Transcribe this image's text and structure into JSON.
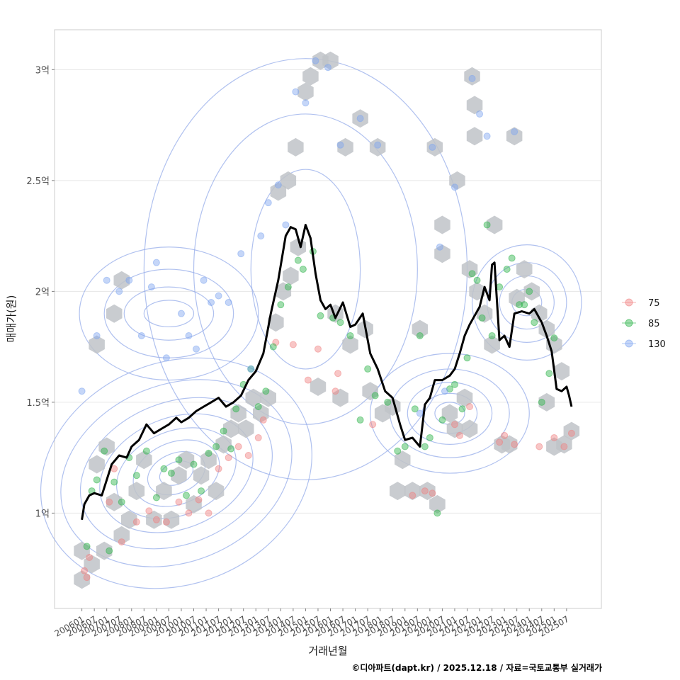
{
  "chart_data": {
    "type": "scatter",
    "title": "",
    "xlabel": "거래년월",
    "ylabel": "매매가(원)",
    "y_unit": "억",
    "ylim": [
      0.57,
      3.18
    ],
    "yticks": [
      1,
      1.5,
      2,
      2.5,
      3
    ],
    "ytick_labels": [
      "1억",
      "1.5억",
      "2억",
      "2.5억",
      "3억"
    ],
    "xlim": [
      2004.9,
      2026.9
    ],
    "xticks": [
      2006.0,
      2006.5,
      2007.0,
      2007.5,
      2008.0,
      2008.5,
      2009.0,
      2009.5,
      2010.0,
      2010.5,
      2011.0,
      2011.5,
      2012.0,
      2012.5,
      2013.0,
      2013.5,
      2014.0,
      2014.5,
      2015.0,
      2015.5,
      2016.0,
      2016.5,
      2017.0,
      2017.5,
      2018.0,
      2018.5,
      2019.0,
      2019.5,
      2020.0,
      2020.5,
      2021.0,
      2021.5,
      2022.0,
      2022.5,
      2023.0,
      2023.5,
      2024.0,
      2024.5,
      2025.0,
      2025.5
    ],
    "xtick_labels": [
      "200601",
      "200607",
      "200701",
      "200707",
      "200801",
      "200807",
      "200901",
      "200907",
      "201001",
      "201007",
      "201101",
      "201107",
      "201201",
      "201207",
      "201301",
      "201307",
      "201401",
      "201407",
      "201501",
      "201507",
      "201601",
      "201607",
      "201701",
      "201707",
      "201801",
      "201807",
      "201901",
      "201907",
      "202001",
      "202007",
      "202101",
      "202107",
      "202201",
      "202207",
      "202301",
      "202307",
      "202401",
      "202407",
      "202501",
      "202507"
    ],
    "grid": true,
    "legend": {
      "position": "right",
      "entries": [
        "75",
        "85",
        "130"
      ]
    },
    "series_colors": {
      "75": "#f08080",
      "85": "#2db34a",
      "130": "#7ea5f0"
    },
    "hex_color": "#bfc3c8",
    "contour_color": "#8ea6e8",
    "line_color": "#000000",
    "trend_line": {
      "name": "moving average",
      "x": [
        2006.0,
        2006.1,
        2006.3,
        2006.5,
        2006.8,
        2007.0,
        2007.2,
        2007.5,
        2007.8,
        2008.0,
        2008.3,
        2008.6,
        2008.9,
        2009.2,
        2009.5,
        2009.8,
        2010.0,
        2010.3,
        2010.6,
        2010.9,
        2011.2,
        2011.5,
        2011.8,
        2012.1,
        2012.4,
        2012.7,
        2013.0,
        2013.3,
        2013.6,
        2013.9,
        2014.2,
        2014.4,
        2014.6,
        2014.8,
        2015.0,
        2015.2,
        2015.4,
        2015.6,
        2015.8,
        2016.0,
        2016.2,
        2016.5,
        2016.8,
        2017.0,
        2017.3,
        2017.6,
        2017.9,
        2018.2,
        2018.5,
        2018.8,
        2019.0,
        2019.3,
        2019.6,
        2019.8,
        2020.0,
        2020.2,
        2020.5,
        2020.8,
        2021.0,
        2021.2,
        2021.4,
        2021.6,
        2021.8,
        2022.0,
        2022.2,
        2022.4,
        2022.5,
        2022.6,
        2022.8,
        2023.0,
        2023.2,
        2023.4,
        2023.7,
        2024.0,
        2024.2,
        2024.5,
        2024.7,
        2024.9,
        2025.1,
        2025.3,
        2025.5,
        2025.6,
        2025.7
      ],
      "y": [
        0.97,
        1.04,
        1.08,
        1.09,
        1.08,
        1.15,
        1.22,
        1.26,
        1.25,
        1.3,
        1.33,
        1.4,
        1.36,
        1.38,
        1.4,
        1.43,
        1.41,
        1.43,
        1.46,
        1.48,
        1.5,
        1.52,
        1.48,
        1.5,
        1.53,
        1.6,
        1.64,
        1.72,
        1.9,
        2.05,
        2.25,
        2.29,
        2.28,
        2.2,
        2.3,
        2.24,
        2.08,
        1.96,
        1.92,
        1.94,
        1.88,
        1.95,
        1.84,
        1.85,
        1.9,
        1.72,
        1.65,
        1.55,
        1.52,
        1.4,
        1.33,
        1.34,
        1.3,
        1.49,
        1.52,
        1.6,
        1.6,
        1.62,
        1.65,
        1.72,
        1.8,
        1.85,
        1.89,
        1.93,
        2.02,
        1.96,
        2.12,
        2.13,
        1.78,
        1.8,
        1.75,
        1.9,
        1.91,
        1.9,
        1.92,
        1.86,
        1.8,
        1.73,
        1.56,
        1.55,
        1.57,
        1.53,
        1.48
      ]
    },
    "series": [
      {
        "name": "75",
        "points": [
          [
            2006.1,
            0.74
          ],
          [
            2006.3,
            0.8
          ],
          [
            2006.2,
            0.71
          ],
          [
            2007.1,
            1.05
          ],
          [
            2007.3,
            1.2
          ],
          [
            2007.6,
            0.87
          ],
          [
            2008.2,
            0.96
          ],
          [
            2008.7,
            1.01
          ],
          [
            2009.0,
            0.97
          ],
          [
            2009.4,
            0.96
          ],
          [
            2009.9,
            1.05
          ],
          [
            2010.3,
            1.0
          ],
          [
            2010.7,
            1.06
          ],
          [
            2011.1,
            1.0
          ],
          [
            2011.5,
            1.2
          ],
          [
            2011.9,
            1.25
          ],
          [
            2012.3,
            1.3
          ],
          [
            2012.7,
            1.26
          ],
          [
            2013.1,
            1.34
          ],
          [
            2013.3,
            1.42
          ],
          [
            2013.8,
            1.77
          ],
          [
            2014.5,
            1.76
          ],
          [
            2015.1,
            1.6
          ],
          [
            2015.5,
            1.74
          ],
          [
            2016.3,
            1.63
          ],
          [
            2016.2,
            1.55
          ],
          [
            2017.7,
            1.4
          ],
          [
            2019.3,
            1.08
          ],
          [
            2019.8,
            1.1
          ],
          [
            2020.1,
            1.09
          ],
          [
            2021.0,
            1.4
          ],
          [
            2021.2,
            1.35
          ],
          [
            2021.6,
            1.48
          ],
          [
            2022.8,
            1.32
          ],
          [
            2023.0,
            1.35
          ],
          [
            2023.4,
            1.31
          ],
          [
            2024.4,
            1.3
          ],
          [
            2025.0,
            1.34
          ],
          [
            2025.4,
            1.3
          ],
          [
            2025.7,
            1.36
          ]
        ]
      },
      {
        "name": "85",
        "points": [
          [
            2006.2,
            0.85
          ],
          [
            2006.4,
            1.1
          ],
          [
            2006.6,
            1.15
          ],
          [
            2006.9,
            1.28
          ],
          [
            2007.1,
            0.83
          ],
          [
            2007.3,
            1.14
          ],
          [
            2007.6,
            1.05
          ],
          [
            2007.9,
            1.25
          ],
          [
            2008.2,
            1.17
          ],
          [
            2008.6,
            1.28
          ],
          [
            2009.0,
            1.07
          ],
          [
            2009.3,
            1.2
          ],
          [
            2009.6,
            1.18
          ],
          [
            2009.9,
            1.24
          ],
          [
            2010.2,
            1.08
          ],
          [
            2010.5,
            1.22
          ],
          [
            2010.8,
            1.1
          ],
          [
            2011.1,
            1.27
          ],
          [
            2011.4,
            1.3
          ],
          [
            2011.7,
            1.37
          ],
          [
            2012.0,
            1.29
          ],
          [
            2012.2,
            1.47
          ],
          [
            2012.5,
            1.58
          ],
          [
            2012.8,
            1.65
          ],
          [
            2013.1,
            1.48
          ],
          [
            2013.4,
            1.55
          ],
          [
            2013.7,
            1.75
          ],
          [
            2014.0,
            1.94
          ],
          [
            2014.3,
            2.02
          ],
          [
            2014.7,
            2.14
          ],
          [
            2014.9,
            2.1
          ],
          [
            2015.3,
            2.18
          ],
          [
            2015.6,
            1.89
          ],
          [
            2016.1,
            1.88
          ],
          [
            2016.4,
            1.86
          ],
          [
            2016.8,
            1.8
          ],
          [
            2017.2,
            1.42
          ],
          [
            2017.5,
            1.65
          ],
          [
            2017.8,
            1.53
          ],
          [
            2018.3,
            1.5
          ],
          [
            2018.7,
            1.28
          ],
          [
            2019.0,
            1.3
          ],
          [
            2019.4,
            1.47
          ],
          [
            2019.6,
            1.8
          ],
          [
            2019.8,
            1.3
          ],
          [
            2020.0,
            1.34
          ],
          [
            2020.3,
            1.0
          ],
          [
            2020.5,
            1.42
          ],
          [
            2020.8,
            1.56
          ],
          [
            2021.0,
            1.58
          ],
          [
            2021.3,
            1.47
          ],
          [
            2021.5,
            1.7
          ],
          [
            2021.7,
            2.08
          ],
          [
            2021.9,
            2.05
          ],
          [
            2022.1,
            1.88
          ],
          [
            2022.3,
            2.3
          ],
          [
            2022.5,
            1.8
          ],
          [
            2022.8,
            2.02
          ],
          [
            2023.1,
            2.1
          ],
          [
            2023.3,
            2.15
          ],
          [
            2023.6,
            1.94
          ],
          [
            2023.8,
            1.94
          ],
          [
            2024.0,
            2.0
          ],
          [
            2024.2,
            1.86
          ],
          [
            2024.5,
            1.5
          ],
          [
            2024.8,
            1.63
          ],
          [
            2025.0,
            1.79
          ]
        ]
      },
      {
        "name": "130",
        "points": [
          [
            2006.0,
            1.55
          ],
          [
            2006.6,
            1.8
          ],
          [
            2007.0,
            2.05
          ],
          [
            2007.5,
            2.0
          ],
          [
            2007.9,
            2.05
          ],
          [
            2008.4,
            1.8
          ],
          [
            2008.8,
            2.02
          ],
          [
            2009.0,
            2.13
          ],
          [
            2009.4,
            1.7
          ],
          [
            2010.0,
            1.9
          ],
          [
            2010.3,
            1.8
          ],
          [
            2010.6,
            1.74
          ],
          [
            2010.9,
            2.05
          ],
          [
            2011.2,
            1.95
          ],
          [
            2011.5,
            1.98
          ],
          [
            2011.9,
            1.95
          ],
          [
            2012.4,
            2.17
          ],
          [
            2012.8,
            1.65
          ],
          [
            2013.2,
            2.25
          ],
          [
            2013.5,
            2.4
          ],
          [
            2013.9,
            2.48
          ],
          [
            2014.2,
            2.3
          ],
          [
            2014.6,
            2.9
          ],
          [
            2015.0,
            2.85
          ],
          [
            2015.4,
            3.04
          ],
          [
            2015.9,
            3.01
          ],
          [
            2016.4,
            2.66
          ],
          [
            2017.2,
            2.78
          ],
          [
            2017.9,
            2.66
          ],
          [
            2020.1,
            2.65
          ],
          [
            2020.4,
            2.2
          ],
          [
            2021.0,
            2.47
          ],
          [
            2021.7,
            2.96
          ],
          [
            2022.0,
            2.8
          ],
          [
            2022.3,
            2.7
          ],
          [
            2023.4,
            2.72
          ],
          [
            2019.6,
            1.45
          ],
          [
            2020.6,
            1.55
          ]
        ]
      }
    ],
    "hexbins": [
      [
        2006.0,
        0.7
      ],
      [
        2006.0,
        0.83
      ],
      [
        2006.4,
        0.77
      ],
      [
        2006.9,
        0.83
      ],
      [
        2006.6,
        1.22
      ],
      [
        2007.0,
        1.3
      ],
      [
        2007.3,
        1.05
      ],
      [
        2007.6,
        0.9
      ],
      [
        2007.9,
        0.97
      ],
      [
        2008.2,
        1.1
      ],
      [
        2008.5,
        1.24
      ],
      [
        2008.9,
        0.97
      ],
      [
        2009.3,
        1.1
      ],
      [
        2009.6,
        0.97
      ],
      [
        2009.9,
        1.17
      ],
      [
        2010.2,
        1.24
      ],
      [
        2010.5,
        1.04
      ],
      [
        2010.8,
        1.17
      ],
      [
        2011.1,
        1.24
      ],
      [
        2011.4,
        1.1
      ],
      [
        2011.7,
        1.31
      ],
      [
        2012.0,
        1.38
      ],
      [
        2012.3,
        1.45
      ],
      [
        2012.6,
        1.38
      ],
      [
        2012.9,
        1.52
      ],
      [
        2013.2,
        1.45
      ],
      [
        2013.5,
        1.52
      ],
      [
        2013.8,
        1.86
      ],
      [
        2014.1,
        2.0
      ],
      [
        2014.4,
        2.07
      ],
      [
        2014.7,
        2.2
      ],
      [
        2013.9,
        2.45
      ],
      [
        2014.3,
        2.5
      ],
      [
        2014.6,
        2.65
      ],
      [
        2015.0,
        2.9
      ],
      [
        2015.2,
        2.97
      ],
      [
        2015.6,
        3.04
      ],
      [
        2016.0,
        3.04
      ],
      [
        2016.6,
        2.65
      ],
      [
        2017.2,
        2.78
      ],
      [
        2017.9,
        2.65
      ],
      [
        2016.2,
        1.9
      ],
      [
        2016.8,
        1.76
      ],
      [
        2017.4,
        1.83
      ],
      [
        2017.6,
        1.55
      ],
      [
        2018.1,
        1.45
      ],
      [
        2018.5,
        1.48
      ],
      [
        2018.9,
        1.24
      ],
      [
        2018.7,
        1.1
      ],
      [
        2019.3,
        1.1
      ],
      [
        2019.9,
        1.1
      ],
      [
        2020.3,
        1.04
      ],
      [
        2019.6,
        1.83
      ],
      [
        2020.2,
        2.65
      ],
      [
        2020.5,
        2.3
      ],
      [
        2020.5,
        2.17
      ],
      [
        2021.1,
        2.5
      ],
      [
        2021.6,
        2.1
      ],
      [
        2021.9,
        2.0
      ],
      [
        2022.2,
        1.9
      ],
      [
        2022.5,
        1.76
      ],
      [
        2022.6,
        2.3
      ],
      [
        2022.9,
        1.31
      ],
      [
        2023.2,
        1.31
      ],
      [
        2023.5,
        1.97
      ],
      [
        2023.8,
        2.1
      ],
      [
        2024.1,
        2.0
      ],
      [
        2024.4,
        1.9
      ],
      [
        2024.7,
        1.83
      ],
      [
        2025.0,
        1.76
      ],
      [
        2024.7,
        1.5
      ],
      [
        2025.0,
        1.3
      ],
      [
        2025.4,
        1.31
      ],
      [
        2025.7,
        1.37
      ],
      [
        2025.3,
        1.64
      ],
      [
        2021.7,
        2.97
      ],
      [
        2021.8,
        2.84
      ],
      [
        2021.8,
        2.7
      ],
      [
        2023.4,
        2.7
      ],
      [
        2020.8,
        1.45
      ],
      [
        2021.0,
        1.38
      ],
      [
        2021.4,
        1.52
      ],
      [
        2021.6,
        1.38
      ],
      [
        2015.5,
        1.57
      ],
      [
        2016.4,
        1.52
      ],
      [
        2007.3,
        1.9
      ],
      [
        2007.6,
        2.05
      ],
      [
        2006.6,
        1.76
      ]
    ]
  },
  "caption": "©디아파트(dapt.kr) / 2025.12.18 / 자료=국토교통부 실거래가"
}
